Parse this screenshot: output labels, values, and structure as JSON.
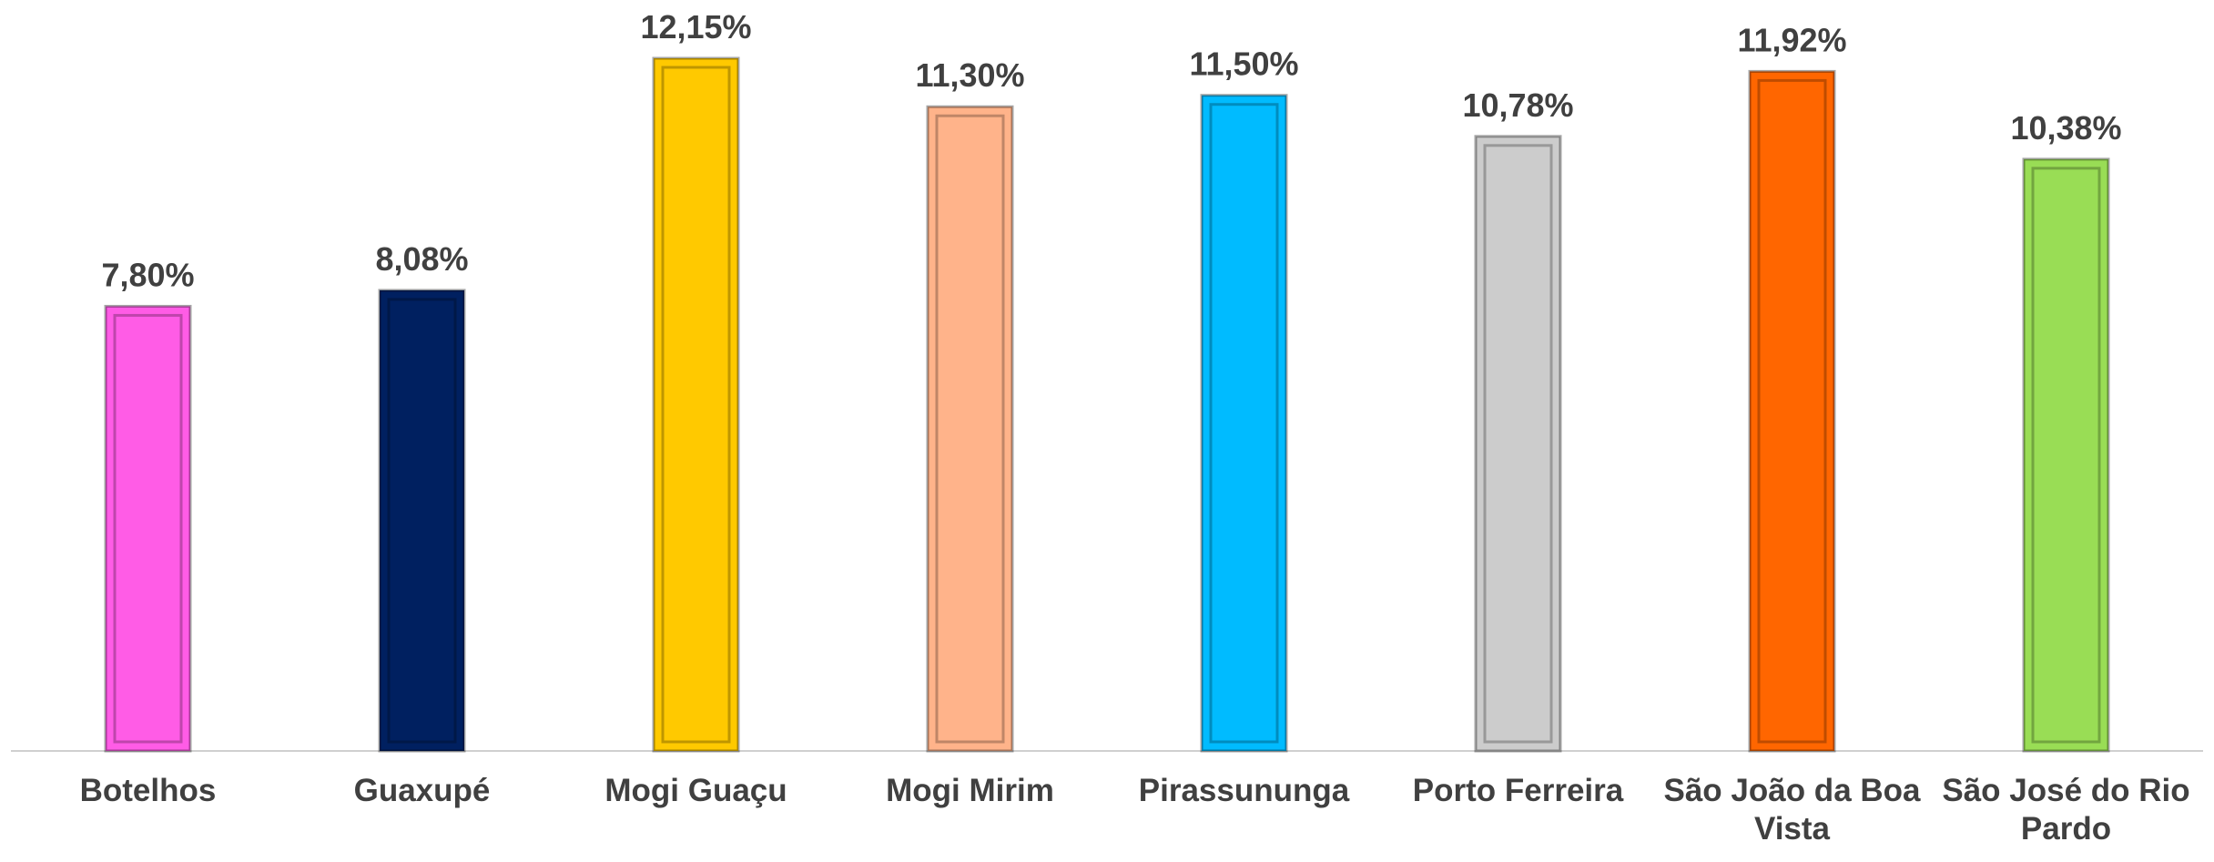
{
  "chart_data": {
    "type": "bar",
    "categories": [
      "Botelhos",
      "Guaxupé",
      "Mogi Guaçu",
      "Mogi Mirim",
      "Pirassununga",
      "Porto Ferreira",
      "São João da Boa Vista",
      "São José do Rio Pardo"
    ],
    "values": [
      7.8,
      8.08,
      12.15,
      11.3,
      11.5,
      10.78,
      11.92,
      10.38
    ],
    "value_labels": [
      "7,80%",
      "8,08%",
      "12,15%",
      "11,30%",
      "11,50%",
      "10,78%",
      "11,92%",
      "10,38%"
    ],
    "colors": [
      "#ff5ce6",
      "#002060",
      "#ffc900",
      "#ffb38a",
      "#00bbff",
      "#cccccc",
      "#ff6600",
      "#99dd55"
    ]
  }
}
